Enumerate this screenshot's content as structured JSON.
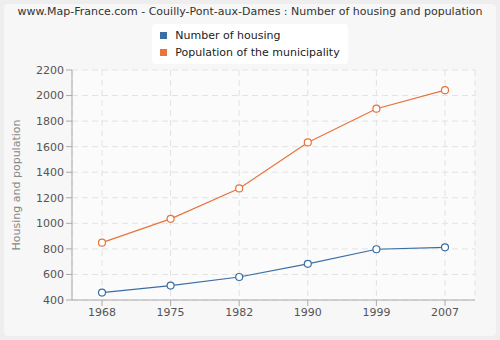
{
  "chart_data": {
    "type": "line",
    "title": "www.Map-France.com - Couilly-Pont-aux-Dames : Number of housing and population",
    "y_label": "Housing and population",
    "categories": [
      "1968",
      "1975",
      "1982",
      "1990",
      "1999",
      "2007"
    ],
    "series": [
      {
        "name": "Number of housing",
        "color": "#3b6ea5",
        "marker": "circle",
        "values": [
          458,
          513,
          580,
          683,
          797,
          812
        ]
      },
      {
        "name": "Population of the municipality",
        "color": "#e8743b",
        "marker": "circle",
        "values": [
          849,
          1035,
          1273,
          1633,
          1897,
          2042
        ]
      }
    ],
    "ylim": [
      400,
      2200
    ],
    "yticks": [
      400,
      600,
      800,
      1000,
      1200,
      1400,
      1600,
      1800,
      2000,
      2200
    ],
    "grid": true,
    "legend": "top"
  }
}
